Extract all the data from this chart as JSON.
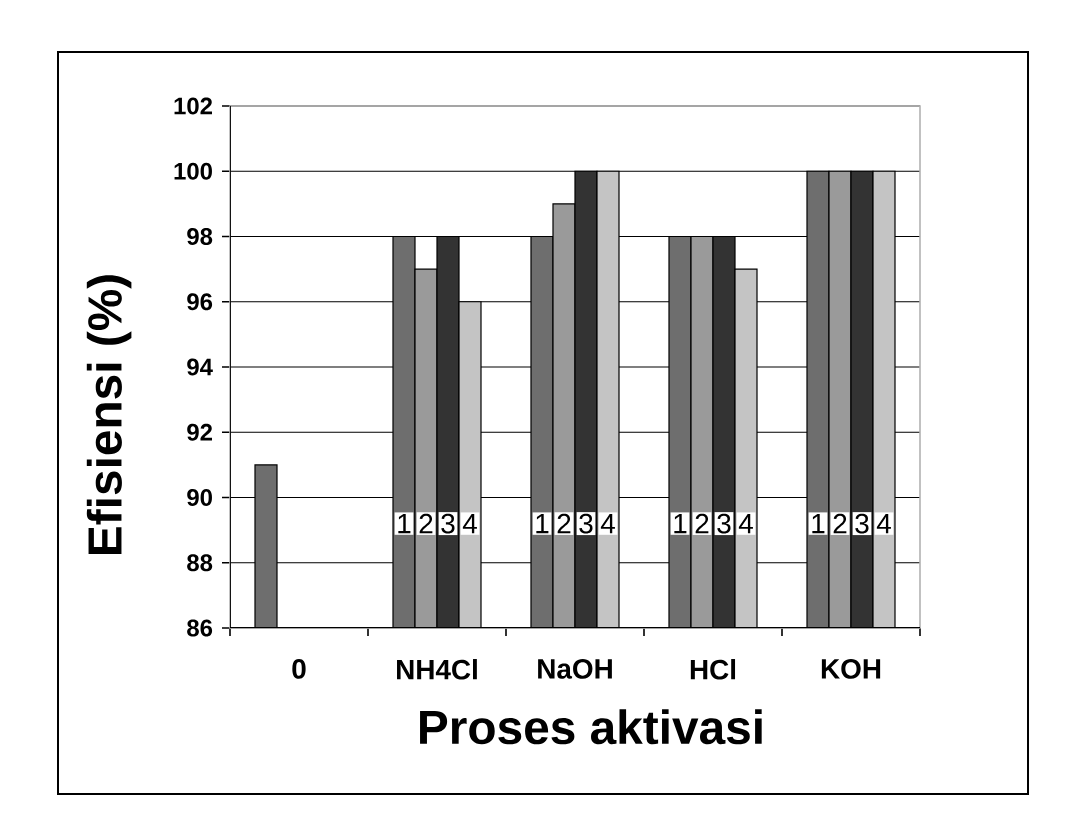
{
  "chart_data": {
    "type": "bar",
    "xlabel": "Proses aktivasi",
    "ylabel": "Efisiensi (%)",
    "categories": [
      "0",
      "NH4Cl",
      "NaOH",
      "HCl",
      "KOH"
    ],
    "series": [
      {
        "name": "1",
        "color": "#6e6e6e",
        "values": [
          91,
          98,
          98,
          98,
          100
        ]
      },
      {
        "name": "2",
        "color": "#9a9a9a",
        "values": [
          null,
          97,
          99,
          98,
          100
        ]
      },
      {
        "name": "3",
        "color": "#333333",
        "values": [
          null,
          98,
          100,
          98,
          100
        ]
      },
      {
        "name": "4",
        "color": "#c4c4c4",
        "values": [
          null,
          96,
          100,
          97,
          100
        ]
      }
    ],
    "ylim": [
      86,
      102
    ],
    "yticks": [
      86,
      88,
      90,
      92,
      94,
      96,
      98,
      100,
      102
    ],
    "grid": "y"
  }
}
